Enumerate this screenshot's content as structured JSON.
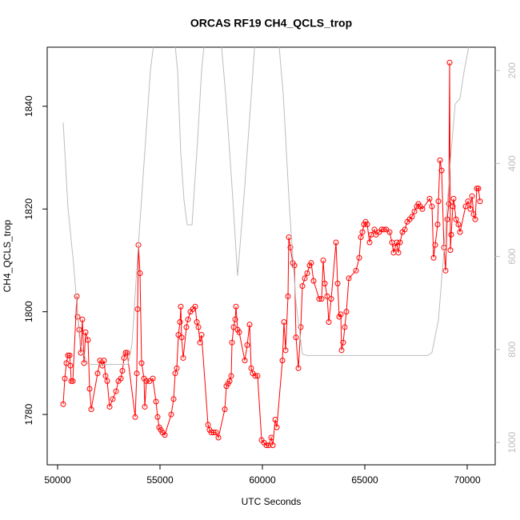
{
  "chart_data": {
    "type": "line",
    "title": "ORCAS RF19 CH4_QCLS_trop",
    "x_label": "UTC Seconds",
    "y_label": "CH4_QCLS_trop",
    "xlim": [
      49492,
      71367
    ],
    "xticks": [
      50000,
      55000,
      60000,
      65000,
      70000
    ],
    "ylim": [
      1770.2,
      1851.5
    ],
    "yticks": [
      1780,
      1800,
      1820,
      1840
    ],
    "y2lim": [
      1048,
      150
    ],
    "y2ticks": [
      200,
      400,
      600,
      800,
      1000
    ],
    "y2_color": "#bdbdbd",
    "series": [
      {
        "color": "#ff0000",
        "marker": "circle",
        "x": [
          50273,
          50352,
          50430,
          50508,
          50586,
          50625,
          50664,
          50742,
          50938,
          50977,
          51055,
          51133,
          51211,
          51289,
          51367,
          51484,
          51563,
          51641,
          51953,
          52070,
          52188,
          52266,
          52344,
          52422,
          52539,
          52695,
          52852,
          52969,
          53086,
          53164,
          53242,
          53320,
          53398,
          53789,
          53867,
          53906,
          53945,
          54023,
          54102,
          54219,
          54258,
          54336,
          54492,
          54648,
          54805,
          54883,
          54961,
          55039,
          55117,
          55234,
          55547,
          55664,
          55742,
          55820,
          55898,
          55977,
          56016,
          56055,
          56133,
          56289,
          56367,
          56484,
          56602,
          56719,
          56797,
          56875,
          56953,
          57031,
          57344,
          57422,
          57500,
          57617,
          57734,
          57852,
          58164,
          58242,
          58320,
          58398,
          58477,
          58516,
          58594,
          58672,
          58711,
          58789,
          58867,
          59141,
          59258,
          59375,
          59453,
          59531,
          59648,
          59766,
          59961,
          60078,
          60195,
          60313,
          60430,
          60508,
          60625,
          60703,
          60977,
          61055,
          61133,
          61250,
          61289,
          61367,
          61484,
          61563,
          61641,
          61758,
          61875,
          61953,
          62070,
          62188,
          62305,
          62383,
          62500,
          62773,
          62891,
          62969,
          63047,
          63164,
          63242,
          63359,
          63594,
          63672,
          63750,
          63828,
          63867,
          63945,
          64023,
          64102,
          64219,
          64570,
          64727,
          64805,
          64883,
          64961,
          65039,
          65117,
          65234,
          65313,
          65469,
          65547,
          65703,
          65820,
          65938,
          66055,
          66211,
          66328,
          66406,
          66484,
          66563,
          66641,
          66719,
          66836,
          66953,
          67070,
          67188,
          67305,
          67422,
          67539,
          67617,
          67695,
          67813,
          68164,
          68281,
          68359,
          68438,
          68555,
          68594,
          68672,
          68750,
          68867,
          68945,
          69023,
          69102,
          69141,
          69180,
          69219,
          69297,
          69336,
          69453,
          69570,
          69648,
          69922,
          70039,
          70156,
          70234,
          70313,
          70391,
          70469,
          70547,
          70625
        ],
        "values": [
          1782,
          1787,
          1790,
          1791.5,
          1791.5,
          1789.5,
          1786.5,
          1786.5,
          1803,
          1799,
          1796.5,
          1792,
          1798.5,
          1790,
          1796,
          1794.5,
          1785,
          1781,
          1788,
          1790.5,
          1789.5,
          1790.5,
          1787.5,
          1786.5,
          1781.5,
          1783,
          1784.5,
          1786.5,
          1787,
          1788.5,
          1791,
          1792,
          1792,
          1779.5,
          1788,
          1800.5,
          1813,
          1807.5,
          1790,
          1787,
          1781.5,
          1786.5,
          1786.5,
          1787,
          1782.5,
          1779.5,
          1777.5,
          1777,
          1776.5,
          1776,
          1780,
          1783,
          1788,
          1789,
          1795.5,
          1798,
          1801,
          1795,
          1791,
          1797,
          1798.5,
          1800,
          1800.5,
          1801,
          1798,
          1797,
          1794,
          1795.5,
          1778,
          1777,
          1776.5,
          1776.5,
          1776.5,
          1775.5,
          1781,
          1785.5,
          1786,
          1786.5,
          1787.5,
          1794,
          1797,
          1798.5,
          1801,
          1796.5,
          1796,
          1790.5,
          1793.5,
          1797.5,
          1789,
          1788,
          1787.5,
          1787.5,
          1775,
          1774.5,
          1774,
          1774,
          1775.5,
          1774,
          1779,
          1777.5,
          1790.5,
          1798,
          1792.5,
          1803,
          1814.5,
          1812.5,
          1809.5,
          1809,
          1795,
          1789,
          1797,
          1805,
          1806.5,
          1807.5,
          1809,
          1809.5,
          1806,
          1802.5,
          1802.5,
          1810,
          1805.5,
          1803,
          1798,
          1802.5,
          1813.5,
          1805.5,
          1799,
          1799.5,
          1792.5,
          1794,
          1797,
          1800,
          1806.5,
          1808,
          1810.5,
          1814.5,
          1815.5,
          1817,
          1817.5,
          1817,
          1813.5,
          1815,
          1816,
          1815,
          1815.5,
          1816,
          1816,
          1816,
          1815.5,
          1813.5,
          1811.5,
          1812.5,
          1813.5,
          1811.5,
          1813.5,
          1815.5,
          1816,
          1817.5,
          1818,
          1818.5,
          1819.5,
          1820.5,
          1821,
          1820.5,
          1820,
          1822,
          1820.5,
          1810.5,
          1813,
          1817,
          1821.5,
          1829.5,
          1827.5,
          1812.5,
          1808,
          1818,
          1821,
          1848.5,
          1812,
          1815,
          1820.5,
          1822,
          1818,
          1817,
          1815.5,
          1820.5,
          1821.5,
          1820,
          1822.5,
          1819,
          1818,
          1824,
          1824,
          1821.5
        ]
      },
      {
        "color": "#bdbdbd",
        "axis": "y2",
        "x": [
          50273,
          50508,
          50781,
          51094,
          51484,
          53438,
          53633,
          53906,
          54219,
          54531,
          54727,
          55703,
          55859,
          56016,
          56172,
          56328,
          56563,
          56836,
          57031,
          57188,
          57969,
          58203,
          58516,
          58789,
          59102,
          59414,
          59648,
          60781,
          61016,
          61328,
          61641,
          61953,
          62188,
          68086,
          68281,
          68594,
          68906,
          69180,
          69414,
          69648,
          69844,
          70156
        ],
        "values": [
          312,
          496,
          617,
          789,
          832,
          832,
          789,
          600,
          400,
          200,
          130,
          130,
          200,
          380,
          479,
          532,
          532,
          350,
          200,
          130,
          130,
          250,
          450,
          642,
          470,
          280,
          130,
          130,
          250,
          500,
          700,
          810,
          813,
          813,
          806,
          737,
          565,
          393,
          272,
          260,
          203,
          130
        ]
      }
    ]
  }
}
